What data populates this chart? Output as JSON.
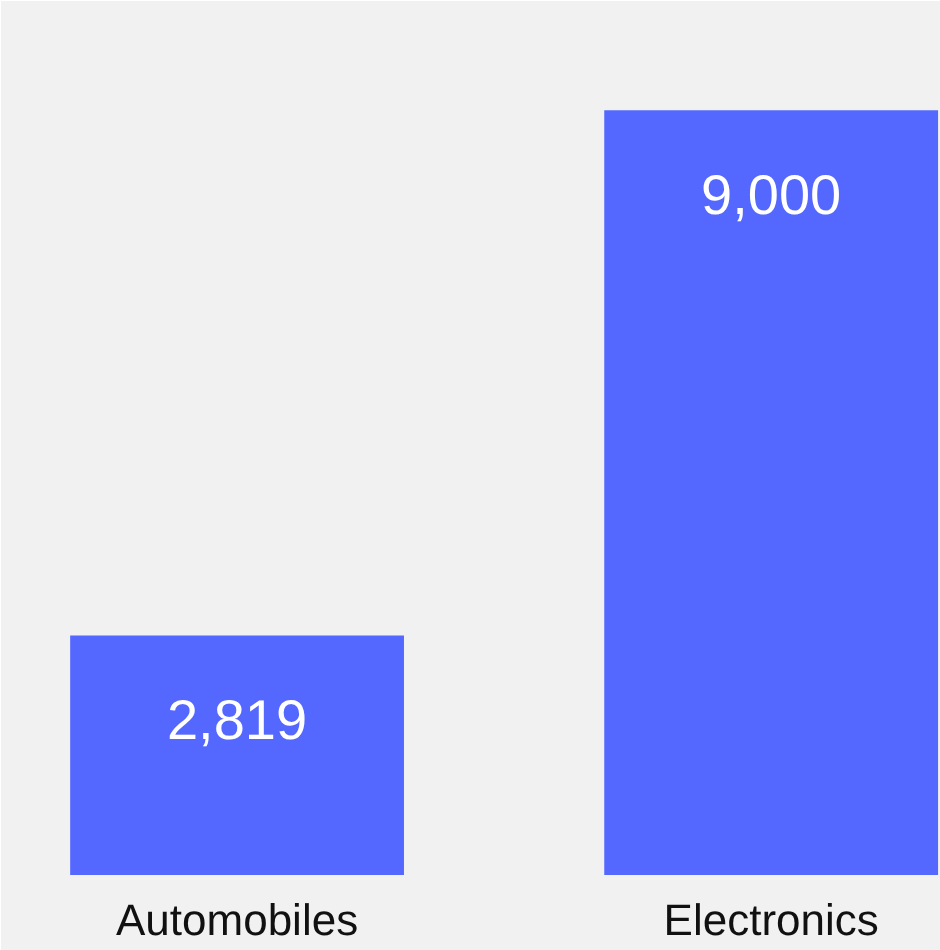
{
  "chart_data": {
    "type": "bar",
    "categories": [
      "Automobiles",
      "Electronics"
    ],
    "values": [
      2819,
      9000
    ],
    "color": "#5468ff",
    "value_labels": [
      "2,819",
      "9,000"
    ]
  }
}
